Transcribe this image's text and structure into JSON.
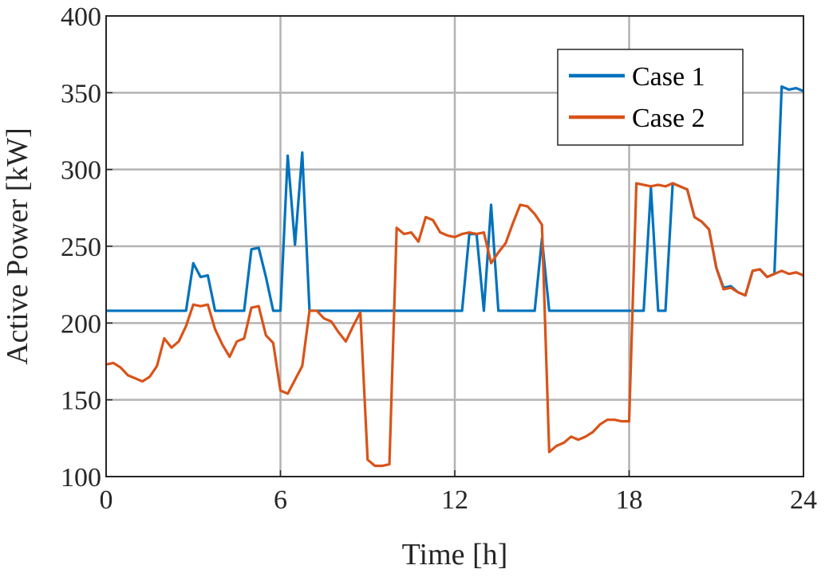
{
  "chart_data": {
    "type": "line",
    "xlabel": "Time [h]",
    "ylabel": "Active Power [kW]",
    "xlim": [
      0,
      24
    ],
    "ylim": [
      100,
      400
    ],
    "xticks": [
      0,
      6,
      12,
      18,
      24
    ],
    "yticks": [
      100,
      150,
      200,
      250,
      300,
      350,
      400
    ],
    "grid": true,
    "legend_position": "top-right",
    "series": [
      {
        "name": "Case 1",
        "color": "#0072BD",
        "points": [
          [
            0,
            208
          ],
          [
            2.75,
            208
          ],
          [
            3.0,
            239
          ],
          [
            3.25,
            230
          ],
          [
            3.5,
            231
          ],
          [
            3.75,
            208
          ],
          [
            4.75,
            208
          ],
          [
            5.0,
            248
          ],
          [
            5.25,
            249
          ],
          [
            5.5,
            230
          ],
          [
            5.75,
            208
          ],
          [
            6.0,
            208
          ],
          [
            6.25,
            309
          ],
          [
            6.5,
            251
          ],
          [
            6.75,
            311
          ],
          [
            7.0,
            208
          ],
          [
            12.0,
            208
          ],
          [
            12.25,
            208
          ],
          [
            12.5,
            258
          ],
          [
            12.75,
            258
          ],
          [
            13.0,
            208
          ],
          [
            13.25,
            277
          ],
          [
            13.5,
            208
          ],
          [
            14.75,
            208
          ],
          [
            15.0,
            255
          ],
          [
            15.25,
            208
          ],
          [
            18.5,
            208
          ],
          [
            18.75,
            288
          ],
          [
            19.0,
            208
          ],
          [
            19.25,
            208
          ],
          [
            19.5,
            291
          ],
          [
            20.0,
            287
          ],
          [
            20.25,
            269
          ],
          [
            20.5,
            266
          ],
          [
            20.75,
            261
          ],
          [
            21.0,
            236
          ],
          [
            21.25,
            223
          ],
          [
            21.5,
            224
          ],
          [
            21.75,
            220
          ],
          [
            22.0,
            218
          ],
          [
            22.25,
            234
          ],
          [
            22.5,
            235
          ],
          [
            22.75,
            230
          ],
          [
            23.0,
            232
          ],
          [
            23.25,
            354
          ],
          [
            23.5,
            352
          ],
          [
            23.75,
            353
          ],
          [
            24.0,
            351
          ]
        ]
      },
      {
        "name": "Case 2",
        "color": "#D95319",
        "points": [
          [
            0,
            173
          ],
          [
            0.25,
            174
          ],
          [
            0.5,
            171
          ],
          [
            0.75,
            166
          ],
          [
            1.0,
            164
          ],
          [
            1.25,
            162
          ],
          [
            1.5,
            165
          ],
          [
            1.75,
            172
          ],
          [
            2.0,
            190
          ],
          [
            2.25,
            184
          ],
          [
            2.5,
            188
          ],
          [
            2.75,
            198
          ],
          [
            3.0,
            212
          ],
          [
            3.25,
            211
          ],
          [
            3.5,
            212
          ],
          [
            3.75,
            196
          ],
          [
            4.0,
            186
          ],
          [
            4.25,
            178
          ],
          [
            4.5,
            188
          ],
          [
            4.75,
            190
          ],
          [
            5.0,
            210
          ],
          [
            5.25,
            211
          ],
          [
            5.5,
            192
          ],
          [
            5.75,
            187
          ],
          [
            6.0,
            156
          ],
          [
            6.25,
            154
          ],
          [
            6.5,
            163
          ],
          [
            6.75,
            172
          ],
          [
            7.0,
            208
          ],
          [
            7.25,
            208
          ],
          [
            7.5,
            203
          ],
          [
            7.75,
            201
          ],
          [
            8.0,
            194
          ],
          [
            8.25,
            188
          ],
          [
            8.5,
            198
          ],
          [
            8.75,
            207
          ],
          [
            9.0,
            111
          ],
          [
            9.25,
            107
          ],
          [
            9.5,
            107
          ],
          [
            9.75,
            108
          ],
          [
            10.0,
            262
          ],
          [
            10.25,
            258
          ],
          [
            10.5,
            259
          ],
          [
            10.75,
            253
          ],
          [
            11.0,
            269
          ],
          [
            11.25,
            267
          ],
          [
            11.5,
            259
          ],
          [
            11.75,
            257
          ],
          [
            12.0,
            256
          ],
          [
            12.25,
            258
          ],
          [
            12.5,
            259
          ],
          [
            12.75,
            258
          ],
          [
            13.0,
            259
          ],
          [
            13.25,
            239
          ],
          [
            13.5,
            246
          ],
          [
            13.75,
            252
          ],
          [
            14.0,
            265
          ],
          [
            14.25,
            277
          ],
          [
            14.5,
            276
          ],
          [
            14.75,
            271
          ],
          [
            15.0,
            264
          ],
          [
            15.25,
            116
          ],
          [
            15.5,
            120
          ],
          [
            15.75,
            122
          ],
          [
            16.0,
            126
          ],
          [
            16.25,
            124
          ],
          [
            16.5,
            126
          ],
          [
            16.75,
            129
          ],
          [
            17.0,
            134
          ],
          [
            17.25,
            137
          ],
          [
            17.5,
            137
          ],
          [
            17.75,
            136
          ],
          [
            18.0,
            136
          ],
          [
            18.25,
            291
          ],
          [
            18.5,
            290
          ],
          [
            18.75,
            289
          ],
          [
            19.0,
            290
          ],
          [
            19.25,
            289
          ],
          [
            19.5,
            291
          ],
          [
            19.75,
            289
          ],
          [
            20.0,
            287
          ],
          [
            20.25,
            269
          ],
          [
            20.5,
            266
          ],
          [
            20.75,
            261
          ],
          [
            21.0,
            236
          ],
          [
            21.25,
            222
          ],
          [
            21.5,
            223
          ],
          [
            21.75,
            220
          ],
          [
            22.0,
            218
          ],
          [
            22.25,
            234
          ],
          [
            22.5,
            235
          ],
          [
            22.75,
            230
          ],
          [
            23.0,
            232
          ],
          [
            23.25,
            234
          ],
          [
            23.5,
            232
          ],
          [
            23.75,
            233
          ],
          [
            24.0,
            231
          ]
        ]
      }
    ]
  }
}
